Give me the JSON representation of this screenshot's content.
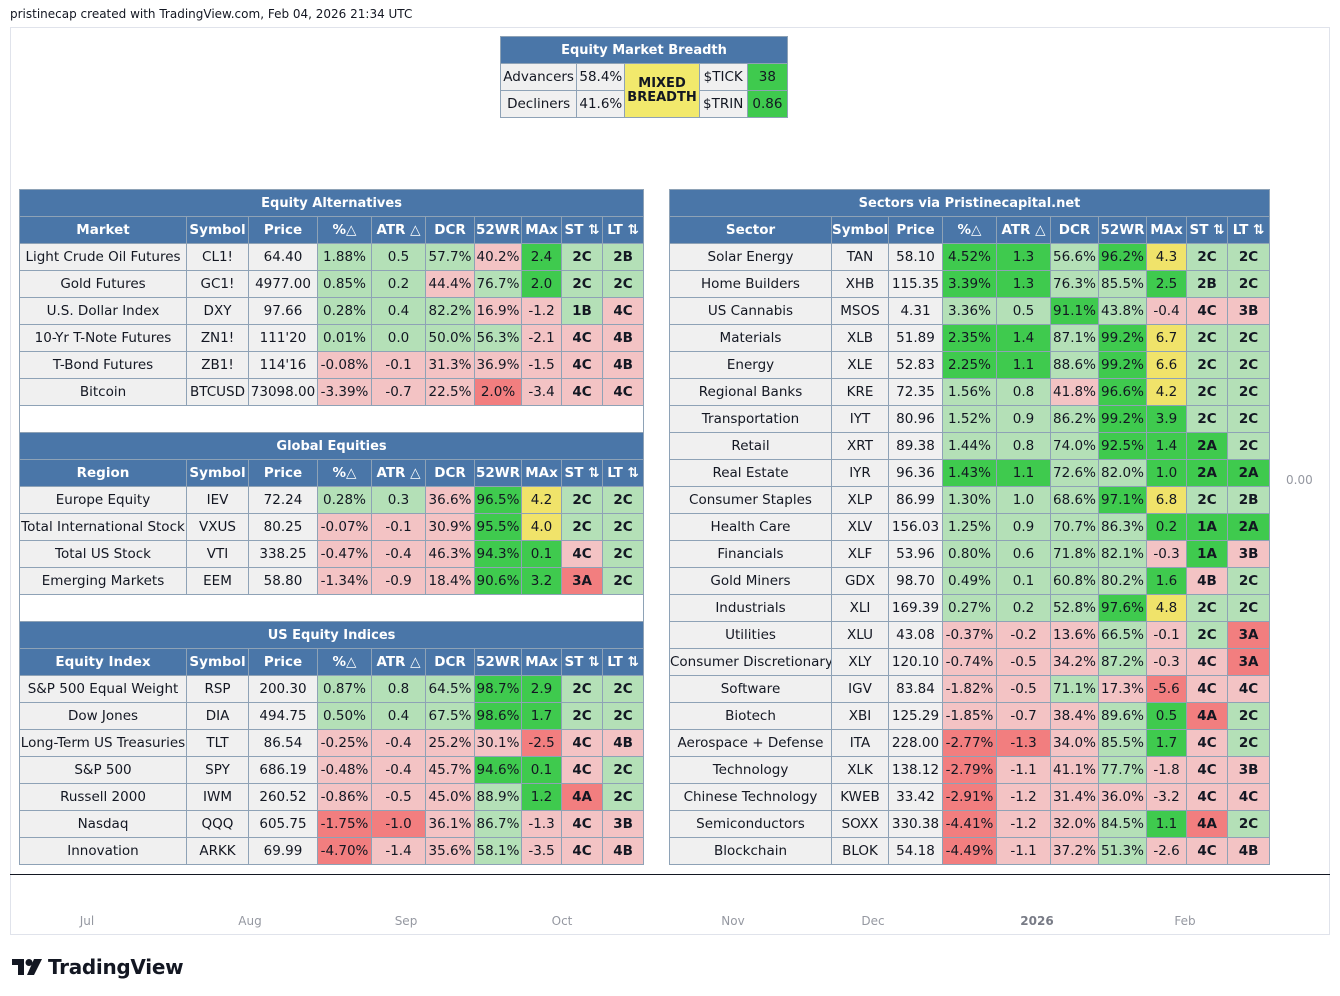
{
  "header": {
    "attribution": "pristinecap created with TradingView.com, Feb 04, 2026 21:34 UTC"
  },
  "price_scale": {
    "value": "0.00"
  },
  "time_axis": [
    "Jul",
    "Aug",
    "Sep",
    "Oct",
    "Nov",
    "Dec",
    "2026",
    "Feb"
  ],
  "brand": {
    "name": "TradingView"
  },
  "colors": {
    "header_blue": "#4a76a8",
    "strong_green": "#3fca4e",
    "light_green": "#b4e0b7",
    "light_red": "#f3c3c4",
    "strong_red": "#f27e7f",
    "yellow": "#f0e36a",
    "neutral_gray": "#f0f0f0"
  },
  "breadth": {
    "title": "Equity Market Breadth",
    "advancers_label": "Advancers",
    "advancers_value": "58.4%",
    "decliners_label": "Decliners",
    "decliners_value": "41.6%",
    "status": "MIXED\nBREADTH",
    "tick_label": "$TICK",
    "tick_value": "38",
    "trin_label": "$TRIN",
    "trin_value": "0.86"
  },
  "sections": [
    {
      "title": "Equity Alternatives",
      "headers": [
        "Market",
        "Symbol",
        "Price",
        "%△",
        "ATR △",
        "DCR",
        "52WR",
        "MAx",
        "ST ⇅",
        "LT ⇅"
      ],
      "rows": [
        [
          "Light Crude Oil Futures",
          "CL1!",
          "64.40",
          "1.88%",
          "0.5",
          "57.7%",
          "40.2%",
          "2.4",
          "2C",
          "2B"
        ],
        [
          "Gold Futures",
          "GC1!",
          "4977.00",
          "0.85%",
          "0.2",
          "44.4%",
          "76.7%",
          "2.0",
          "2C",
          "2C"
        ],
        [
          "U.S. Dollar Index",
          "DXY",
          "97.66",
          "0.28%",
          "0.4",
          "82.2%",
          "16.9%",
          "-1.2",
          "1B",
          "4C"
        ],
        [
          "10-Yr T-Note Futures",
          "ZN1!",
          "111'20",
          "0.01%",
          "0.0",
          "50.0%",
          "56.3%",
          "-2.1",
          "4C",
          "4B"
        ],
        [
          "T-Bond Futures",
          "ZB1!",
          "114'16",
          "-0.08%",
          "-0.1",
          "31.3%",
          "36.9%",
          "-1.5",
          "4C",
          "4B"
        ],
        [
          "Bitcoin",
          "BTCUSD",
          "73098.00",
          "-3.39%",
          "-0.7",
          "22.5%",
          "2.0%",
          "-3.4",
          "4C",
          "4C"
        ]
      ],
      "cell_colors": [
        [
          "gy",
          "gy",
          "gy",
          "lg",
          "lg",
          "lg",
          "pk",
          "sg",
          "lg",
          "lg"
        ],
        [
          "gy",
          "gy",
          "gy",
          "lg",
          "lg",
          "pk",
          "lg",
          "sg",
          "lg",
          "lg"
        ],
        [
          "gy",
          "gy",
          "gy",
          "lg",
          "lg",
          "lg",
          "pk",
          "pk",
          "lg",
          "pk"
        ],
        [
          "gy",
          "gy",
          "gy",
          "lg",
          "lg",
          "lg",
          "lg",
          "pk",
          "pk",
          "pk"
        ],
        [
          "gy",
          "gy",
          "gy",
          "pk",
          "pk",
          "pk",
          "pk",
          "pk",
          "pk",
          "pk"
        ],
        [
          "gy",
          "gy",
          "gy",
          "pk",
          "pk",
          "pk",
          "rd",
          "pk",
          "pk",
          "pk"
        ]
      ]
    },
    {
      "title": "Global Equities",
      "headers": [
        "Region",
        "Symbol",
        "Price",
        "%△",
        "ATR △",
        "DCR",
        "52WR",
        "MAx",
        "ST ⇅",
        "LT ⇅"
      ],
      "rows": [
        [
          "Europe Equity",
          "IEV",
          "72.24",
          "0.28%",
          "0.3",
          "36.6%",
          "96.5%",
          "4.2",
          "2C",
          "2C"
        ],
        [
          "Total International Stock",
          "VXUS",
          "80.25",
          "-0.07%",
          "-0.1",
          "30.9%",
          "95.5%",
          "4.0",
          "2C",
          "2C"
        ],
        [
          "Total US Stock",
          "VTI",
          "338.25",
          "-0.47%",
          "-0.4",
          "46.3%",
          "94.3%",
          "0.1",
          "4C",
          "2C"
        ],
        [
          "Emerging Markets",
          "EEM",
          "58.80",
          "-1.34%",
          "-0.9",
          "18.4%",
          "90.6%",
          "3.2",
          "3A",
          "2C"
        ]
      ],
      "cell_colors": [
        [
          "gy",
          "gy",
          "gy",
          "lg",
          "lg",
          "pk",
          "sg",
          "yl",
          "lg",
          "lg"
        ],
        [
          "gy",
          "gy",
          "gy",
          "pk",
          "pk",
          "pk",
          "sg",
          "yl",
          "lg",
          "lg"
        ],
        [
          "gy",
          "gy",
          "gy",
          "pk",
          "pk",
          "pk",
          "sg",
          "sg",
          "pk",
          "lg"
        ],
        [
          "gy",
          "gy",
          "gy",
          "pk",
          "pk",
          "pk",
          "sg",
          "sg",
          "rd",
          "lg"
        ]
      ]
    },
    {
      "title": "US Equity Indices",
      "headers": [
        "Equity Index",
        "Symbol",
        "Price",
        "%△",
        "ATR △",
        "DCR",
        "52WR",
        "MAx",
        "ST ⇅",
        "LT ⇅"
      ],
      "rows": [
        [
          "S&P 500 Equal Weight",
          "RSP",
          "200.30",
          "0.87%",
          "0.8",
          "64.5%",
          "98.7%",
          "2.9",
          "2C",
          "2C"
        ],
        [
          "Dow Jones",
          "DIA",
          "494.75",
          "0.50%",
          "0.4",
          "67.5%",
          "98.6%",
          "1.7",
          "2C",
          "2C"
        ],
        [
          "Long-Term US Treasuries",
          "TLT",
          "86.54",
          "-0.25%",
          "-0.4",
          "25.2%",
          "30.1%",
          "-2.5",
          "4C",
          "4B"
        ],
        [
          "S&P 500",
          "SPY",
          "686.19",
          "-0.48%",
          "-0.4",
          "45.7%",
          "94.6%",
          "0.1",
          "4C",
          "2C"
        ],
        [
          "Russell 2000",
          "IWM",
          "260.52",
          "-0.86%",
          "-0.5",
          "45.0%",
          "88.9%",
          "1.2",
          "4A",
          "2C"
        ],
        [
          "Nasdaq",
          "QQQ",
          "605.75",
          "-1.75%",
          "-1.0",
          "36.1%",
          "86.7%",
          "-1.3",
          "4C",
          "3B"
        ],
        [
          "Innovation",
          "ARKK",
          "69.99",
          "-4.70%",
          "-1.4",
          "35.6%",
          "58.1%",
          "-3.5",
          "4C",
          "4B"
        ]
      ],
      "cell_colors": [
        [
          "gy",
          "gy",
          "gy",
          "lg",
          "lg",
          "lg",
          "sg",
          "sg",
          "lg",
          "lg"
        ],
        [
          "gy",
          "gy",
          "gy",
          "lg",
          "lg",
          "lg",
          "sg",
          "sg",
          "lg",
          "lg"
        ],
        [
          "gy",
          "gy",
          "gy",
          "pk",
          "pk",
          "pk",
          "pk",
          "rd",
          "pk",
          "pk"
        ],
        [
          "gy",
          "gy",
          "gy",
          "pk",
          "pk",
          "pk",
          "sg",
          "sg",
          "pk",
          "lg"
        ],
        [
          "gy",
          "gy",
          "gy",
          "pk",
          "pk",
          "pk",
          "lg",
          "sg",
          "rd",
          "lg"
        ],
        [
          "gy",
          "gy",
          "gy",
          "rd",
          "rd",
          "pk",
          "lg",
          "pk",
          "pk",
          "pk"
        ],
        [
          "gy",
          "gy",
          "gy",
          "rd",
          "pk",
          "pk",
          "lg",
          "pk",
          "pk",
          "pk"
        ]
      ]
    }
  ],
  "sectors": {
    "title": "Sectors via Pristinecapital.net",
    "headers": [
      "Sector",
      "Symbol",
      "Price",
      "%△",
      "ATR △",
      "DCR",
      "52WR",
      "MAx",
      "ST ⇅",
      "LT ⇅"
    ],
    "rows": [
      [
        "Solar Energy",
        "TAN",
        "58.10",
        "4.52%",
        "1.3",
        "56.6%",
        "96.2%",
        "4.3",
        "2C",
        "2C"
      ],
      [
        "Home Builders",
        "XHB",
        "115.35",
        "3.39%",
        "1.3",
        "76.3%",
        "85.5%",
        "2.5",
        "2B",
        "2C"
      ],
      [
        "US Cannabis",
        "MSOS",
        "4.31",
        "3.36%",
        "0.5",
        "91.1%",
        "43.8%",
        "-0.4",
        "4C",
        "3B"
      ],
      [
        "Materials",
        "XLB",
        "51.89",
        "2.35%",
        "1.4",
        "87.1%",
        "99.2%",
        "6.7",
        "2C",
        "2C"
      ],
      [
        "Energy",
        "XLE",
        "52.83",
        "2.25%",
        "1.1",
        "88.6%",
        "99.2%",
        "6.6",
        "2C",
        "2C"
      ],
      [
        "Regional Banks",
        "KRE",
        "72.35",
        "1.56%",
        "0.8",
        "41.8%",
        "96.6%",
        "4.2",
        "2C",
        "2C"
      ],
      [
        "Transportation",
        "IYT",
        "80.96",
        "1.52%",
        "0.9",
        "86.2%",
        "99.2%",
        "3.9",
        "2C",
        "2C"
      ],
      [
        "Retail",
        "XRT",
        "89.38",
        "1.44%",
        "0.8",
        "74.0%",
        "92.5%",
        "1.4",
        "2A",
        "2C"
      ],
      [
        "Real Estate",
        "IYR",
        "96.36",
        "1.43%",
        "1.1",
        "72.6%",
        "82.0%",
        "1.0",
        "2A",
        "2A"
      ],
      [
        "Consumer Staples",
        "XLP",
        "86.99",
        "1.30%",
        "1.0",
        "68.6%",
        "97.1%",
        "6.8",
        "2C",
        "2B"
      ],
      [
        "Health Care",
        "XLV",
        "156.03",
        "1.25%",
        "0.9",
        "70.7%",
        "86.3%",
        "0.2",
        "1A",
        "2A"
      ],
      [
        "Financials",
        "XLF",
        "53.96",
        "0.80%",
        "0.6",
        "71.8%",
        "82.1%",
        "-0.3",
        "1A",
        "3B"
      ],
      [
        "Gold Miners",
        "GDX",
        "98.70",
        "0.49%",
        "0.1",
        "60.8%",
        "80.2%",
        "1.6",
        "4B",
        "2C"
      ],
      [
        "Industrials",
        "XLI",
        "169.39",
        "0.27%",
        "0.2",
        "52.8%",
        "97.6%",
        "4.8",
        "2C",
        "2C"
      ],
      [
        "Utilities",
        "XLU",
        "43.08",
        "-0.37%",
        "-0.2",
        "13.6%",
        "66.5%",
        "-0.1",
        "2C",
        "3A"
      ],
      [
        "Consumer Discretionary",
        "XLY",
        "120.10",
        "-0.74%",
        "-0.5",
        "34.2%",
        "87.2%",
        "-0.3",
        "4C",
        "3A"
      ],
      [
        "Software",
        "IGV",
        "83.84",
        "-1.82%",
        "-0.5",
        "71.1%",
        "17.3%",
        "-5.6",
        "4C",
        "4C"
      ],
      [
        "Biotech",
        "XBI",
        "125.29",
        "-1.85%",
        "-0.7",
        "38.4%",
        "89.6%",
        "0.5",
        "4A",
        "2C"
      ],
      [
        "Aerospace + Defense",
        "ITA",
        "228.00",
        "-2.77%",
        "-1.3",
        "34.0%",
        "85.5%",
        "1.7",
        "4C",
        "2C"
      ],
      [
        "Technology",
        "XLK",
        "138.12",
        "-2.79%",
        "-1.1",
        "41.1%",
        "77.7%",
        "-1.8",
        "4C",
        "3B"
      ],
      [
        "Chinese Technology",
        "KWEB",
        "33.42",
        "-2.91%",
        "-1.2",
        "31.4%",
        "36.0%",
        "-3.2",
        "4C",
        "4C"
      ],
      [
        "Semiconductors",
        "SOXX",
        "330.38",
        "-4.41%",
        "-1.2",
        "32.0%",
        "84.5%",
        "1.1",
        "4A",
        "2C"
      ],
      [
        "Blockchain",
        "BLOK",
        "54.18",
        "-4.49%",
        "-1.1",
        "37.2%",
        "51.3%",
        "-2.6",
        "4C",
        "4B"
      ]
    ],
    "cell_colors": [
      [
        "gy",
        "gy",
        "gy",
        "sg",
        "sg",
        "lg",
        "sg",
        "yl",
        "lg",
        "lg"
      ],
      [
        "gy",
        "gy",
        "gy",
        "sg",
        "sg",
        "lg",
        "lg",
        "sg",
        "lg",
        "lg"
      ],
      [
        "gy",
        "gy",
        "gy",
        "lg",
        "lg",
        "sg",
        "lg",
        "pk",
        "pk",
        "pk"
      ],
      [
        "gy",
        "gy",
        "gy",
        "sg",
        "sg",
        "lg",
        "sg",
        "yl",
        "lg",
        "lg"
      ],
      [
        "gy",
        "gy",
        "gy",
        "sg",
        "sg",
        "lg",
        "sg",
        "yl",
        "lg",
        "lg"
      ],
      [
        "gy",
        "gy",
        "gy",
        "lg",
        "lg",
        "pk",
        "sg",
        "yl",
        "lg",
        "lg"
      ],
      [
        "gy",
        "gy",
        "gy",
        "lg",
        "lg",
        "lg",
        "sg",
        "sg",
        "lg",
        "lg"
      ],
      [
        "gy",
        "gy",
        "gy",
        "lg",
        "lg",
        "lg",
        "sg",
        "sg",
        "sg",
        "lg"
      ],
      [
        "gy",
        "gy",
        "gy",
        "sg",
        "sg",
        "lg",
        "lg",
        "sg",
        "sg",
        "sg"
      ],
      [
        "gy",
        "gy",
        "gy",
        "lg",
        "lg",
        "lg",
        "sg",
        "yl",
        "lg",
        "lg"
      ],
      [
        "gy",
        "gy",
        "gy",
        "lg",
        "lg",
        "lg",
        "lg",
        "sg",
        "sg",
        "sg"
      ],
      [
        "gy",
        "gy",
        "gy",
        "lg",
        "lg",
        "lg",
        "lg",
        "pk",
        "sg",
        "pk"
      ],
      [
        "gy",
        "gy",
        "gy",
        "lg",
        "lg",
        "lg",
        "lg",
        "sg",
        "pk",
        "lg"
      ],
      [
        "gy",
        "gy",
        "gy",
        "lg",
        "lg",
        "lg",
        "sg",
        "yl",
        "lg",
        "lg"
      ],
      [
        "gy",
        "gy",
        "gy",
        "pk",
        "pk",
        "pk",
        "lg",
        "pk",
        "lg",
        "rd"
      ],
      [
        "gy",
        "gy",
        "gy",
        "pk",
        "pk",
        "pk",
        "lg",
        "pk",
        "pk",
        "rd"
      ],
      [
        "gy",
        "gy",
        "gy",
        "pk",
        "pk",
        "lg",
        "pk",
        "rd",
        "pk",
        "pk"
      ],
      [
        "gy",
        "gy",
        "gy",
        "pk",
        "pk",
        "pk",
        "lg",
        "sg",
        "rd",
        "lg"
      ],
      [
        "gy",
        "gy",
        "gy",
        "rd",
        "rd",
        "pk",
        "lg",
        "sg",
        "pk",
        "lg"
      ],
      [
        "gy",
        "gy",
        "gy",
        "rd",
        "pk",
        "pk",
        "lg",
        "pk",
        "pk",
        "pk"
      ],
      [
        "gy",
        "gy",
        "gy",
        "rd",
        "pk",
        "pk",
        "pk",
        "pk",
        "pk",
        "pk"
      ],
      [
        "gy",
        "gy",
        "gy",
        "rd",
        "pk",
        "pk",
        "lg",
        "sg",
        "rd",
        "lg"
      ],
      [
        "gy",
        "gy",
        "gy",
        "rd",
        "pk",
        "pk",
        "lg",
        "pk",
        "pk",
        "pk"
      ]
    ]
  }
}
